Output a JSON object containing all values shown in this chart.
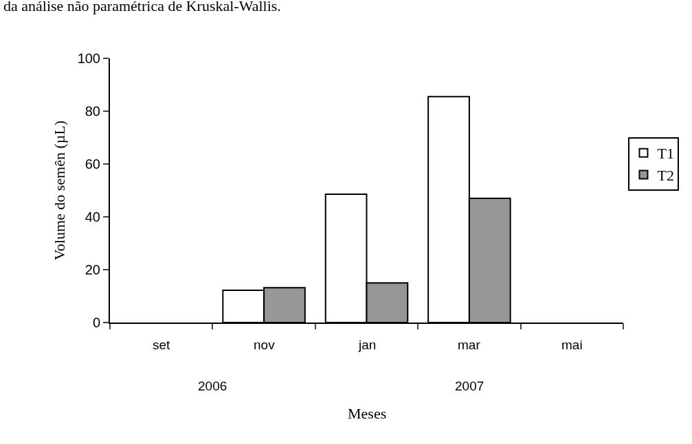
{
  "chart_data": {
    "type": "bar",
    "xlabel": "Meses",
    "ylabel": "Volume do semên (µL)",
    "categories": [
      "set",
      "nov",
      "jan",
      "mar",
      "mai"
    ],
    "series": [
      {
        "name": "T1",
        "color": "#ffffff",
        "values": [
          null,
          12.2,
          48.6,
          85.5,
          null
        ]
      },
      {
        "name": "T2",
        "color": "#969696",
        "values": [
          null,
          13.2,
          15,
          47,
          null
        ]
      }
    ],
    "ylim": [
      0,
      100
    ],
    "yticks": [
      0,
      20,
      40,
      60,
      80,
      100
    ],
    "legend": "right",
    "annotations": [
      "da análise não paramétrica de Kruskal-Wallis.",
      "2006",
      "2007"
    ]
  }
}
